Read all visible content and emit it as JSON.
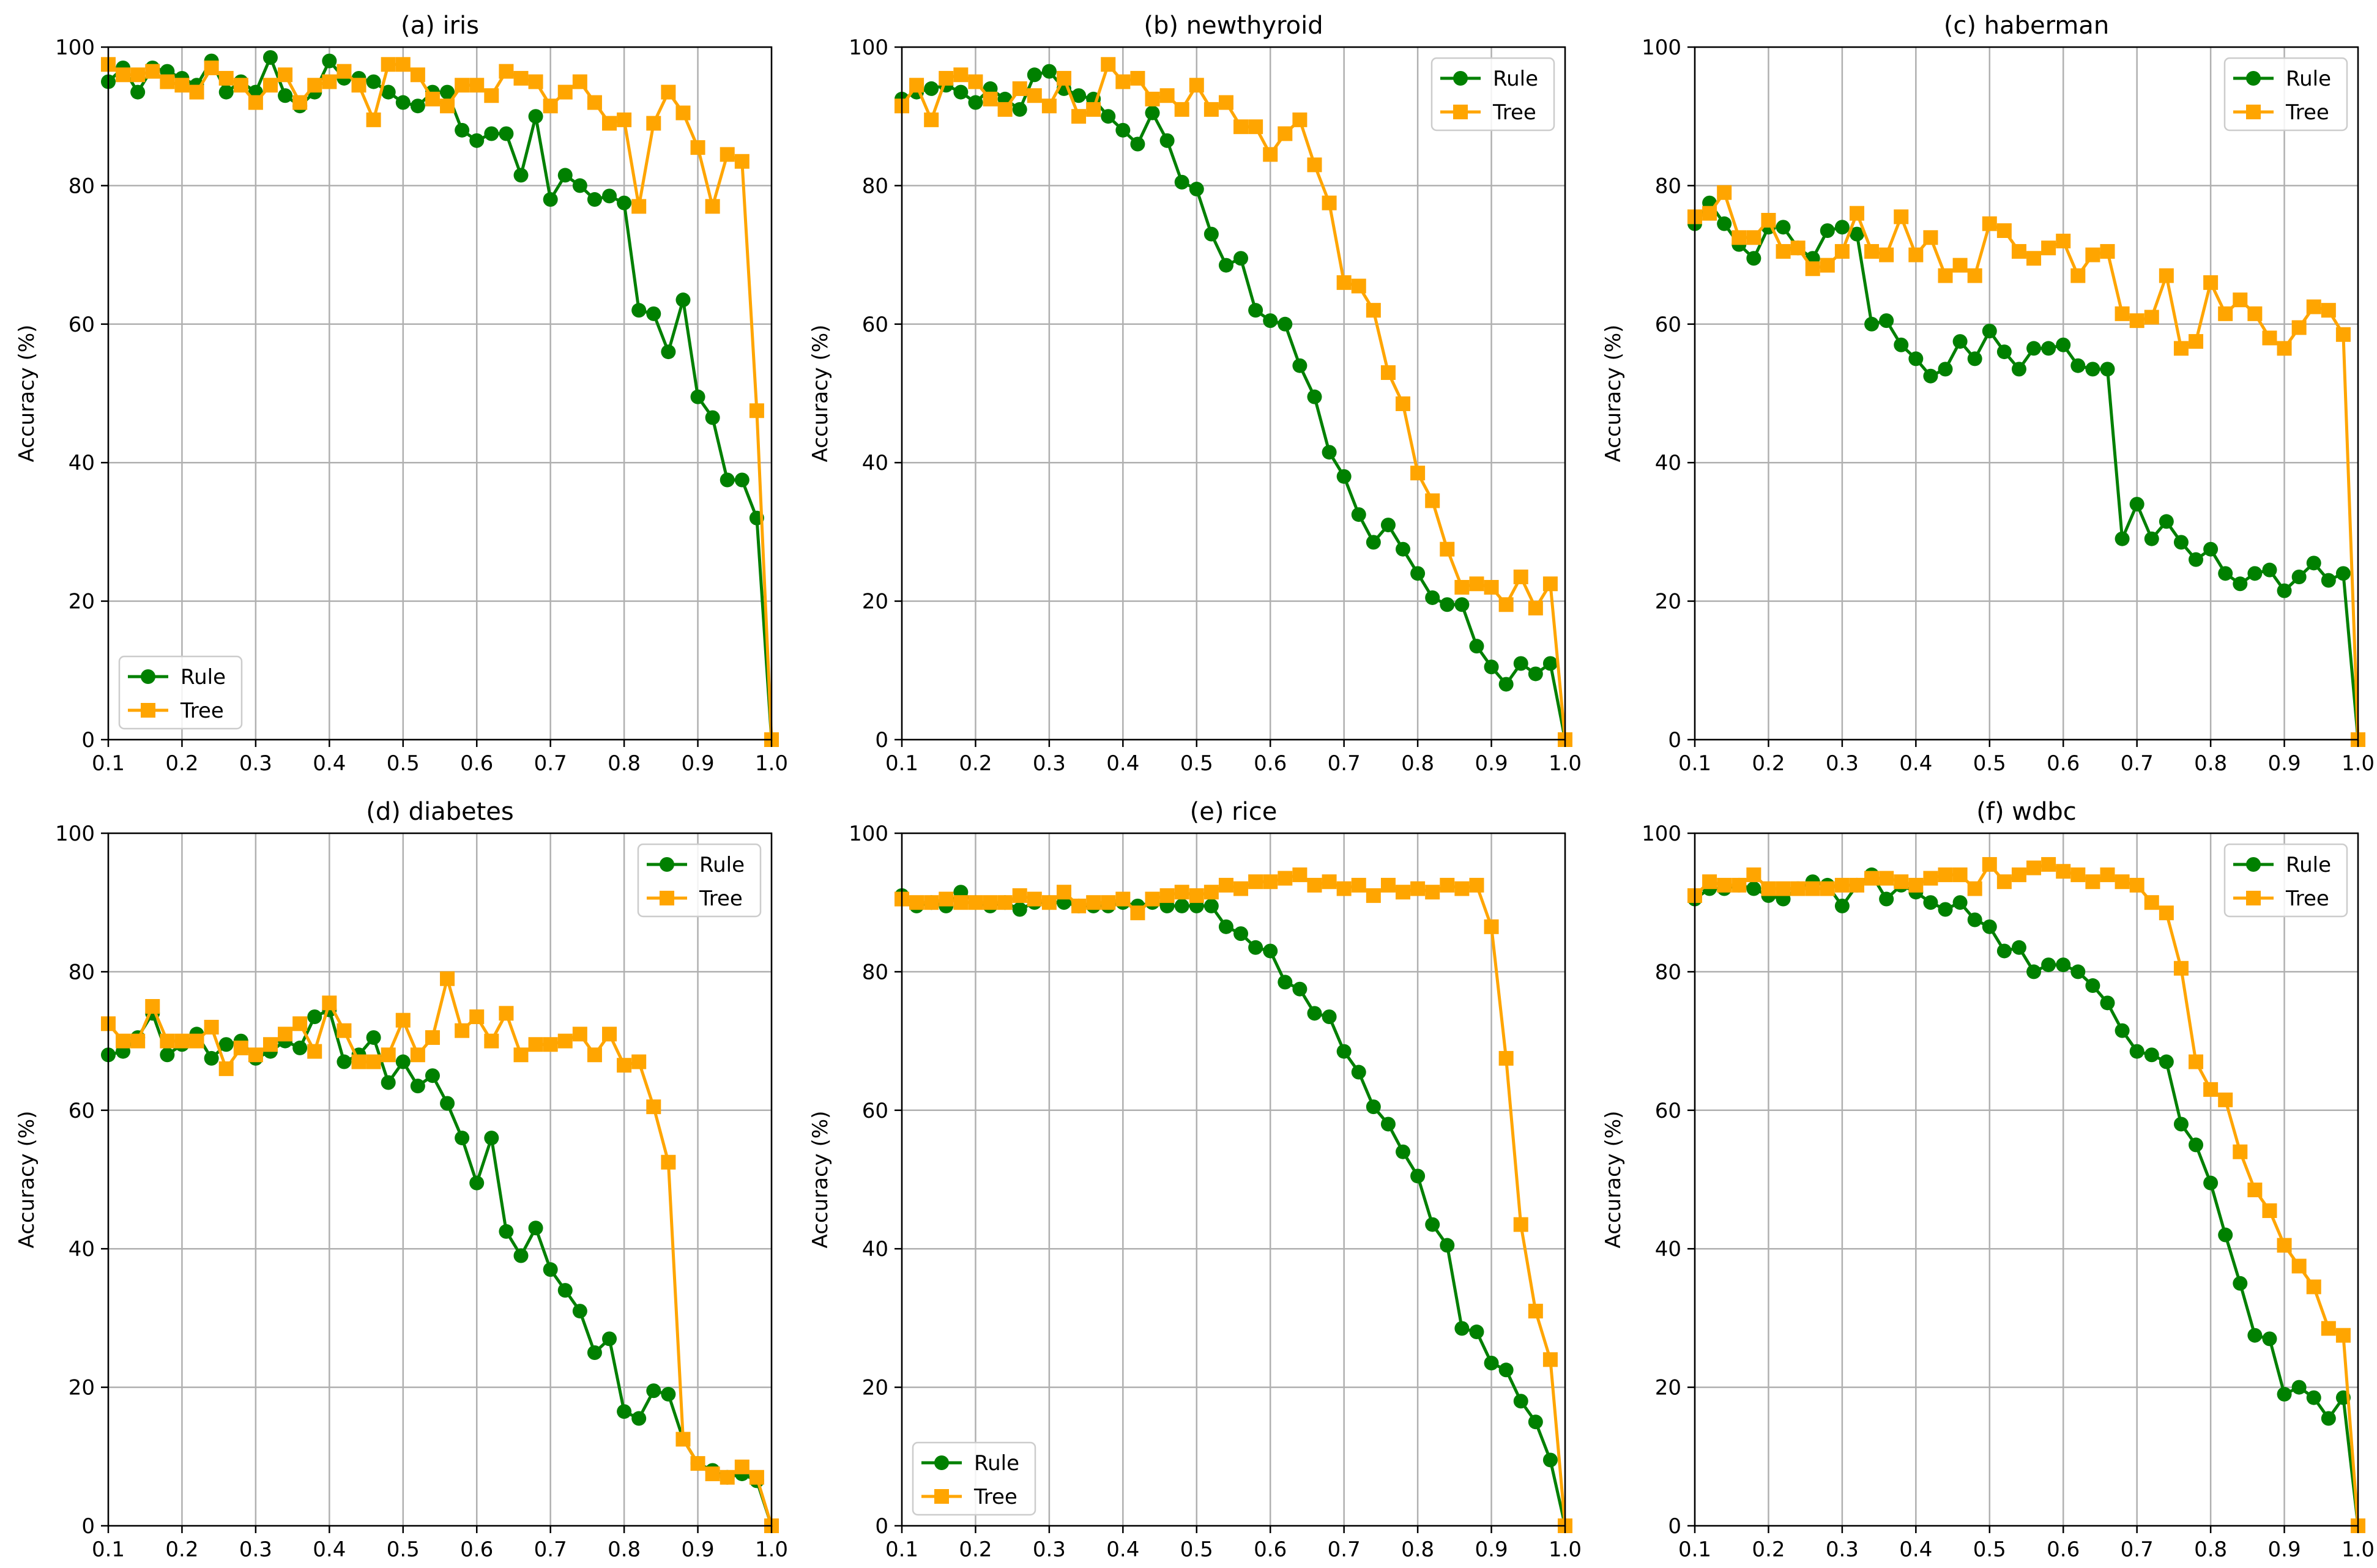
{
  "figure": {
    "background": "#ffffff",
    "colors": {
      "Rule": "#008000",
      "Tree": "#FFA500",
      "grid": "#b0b0b0"
    }
  },
  "chart_data": [
    {
      "type": "line",
      "title": "(a) iris",
      "xlabel": "",
      "ylabel": "Accuracy (%)",
      "xlim": [
        0.1,
        1.0
      ],
      "ylim": [
        0,
        100
      ],
      "xticks": [
        "0.1",
        "0.2",
        "0.3",
        "0.4",
        "0.5",
        "0.6",
        "0.7",
        "0.8",
        "0.9",
        "1.0"
      ],
      "yticks": [
        "0",
        "20",
        "40",
        "60",
        "80",
        "100"
      ],
      "grid": true,
      "legend": "lower left",
      "x": [
        0.1,
        0.12,
        0.14,
        0.16,
        0.18,
        0.2,
        0.22,
        0.24,
        0.26,
        0.28,
        0.3,
        0.32,
        0.34,
        0.36,
        0.38,
        0.4,
        0.42,
        0.44,
        0.46,
        0.48,
        0.5,
        0.52,
        0.54,
        0.56,
        0.58,
        0.6,
        0.62,
        0.64,
        0.66,
        0.68,
        0.7,
        0.72,
        0.74,
        0.76,
        0.78,
        0.8,
        0.82,
        0.84,
        0.86,
        0.88,
        0.9,
        0.92,
        0.94,
        0.96,
        0.98,
        1.0
      ],
      "series": [
        {
          "name": "Rule",
          "marker": "circle",
          "color": "#008000",
          "values": [
            95,
            97,
            93.5,
            97,
            96.5,
            95.5,
            94.5,
            98,
            93.5,
            95,
            93.5,
            98.5,
            93,
            91.5,
            93.5,
            98,
            95.5,
            95.5,
            95,
            93.5,
            92,
            91.5,
            93.5,
            93.5,
            88,
            86.5,
            87.5,
            87.5,
            81.5,
            90,
            78,
            81.5,
            80,
            78,
            78.5,
            77.5,
            62,
            61.5,
            56,
            63.5,
            49.5,
            46.5,
            37.5,
            37.5,
            32,
            0
          ]
        },
        {
          "name": "Tree",
          "marker": "square",
          "color": "#FFA500",
          "values": [
            97.5,
            96,
            96,
            96.5,
            95,
            94.5,
            93.5,
            97,
            95.5,
            94.5,
            92,
            94.5,
            96,
            92,
            94.5,
            95,
            96.5,
            94.5,
            89.5,
            97.5,
            97.5,
            96,
            92.5,
            91.5,
            94.5,
            94.5,
            93,
            96.5,
            95.5,
            95,
            91.5,
            93.5,
            95,
            92,
            89,
            89.5,
            77,
            89,
            93.5,
            90.5,
            85.5,
            77,
            84.5,
            83.5,
            47.5,
            0
          ]
        }
      ]
    },
    {
      "type": "line",
      "title": "(b) newthyroid",
      "xlabel": "",
      "ylabel": "Accuracy (%)",
      "xlim": [
        0.1,
        1.0
      ],
      "ylim": [
        0,
        100
      ],
      "xticks": [
        "0.1",
        "0.2",
        "0.3",
        "0.4",
        "0.5",
        "0.6",
        "0.7",
        "0.8",
        "0.9",
        "1.0"
      ],
      "yticks": [
        "0",
        "20",
        "40",
        "60",
        "80",
        "100"
      ],
      "grid": true,
      "legend": "upper right",
      "x": [
        0.1,
        0.12,
        0.14,
        0.16,
        0.18,
        0.2,
        0.22,
        0.24,
        0.26,
        0.28,
        0.3,
        0.32,
        0.34,
        0.36,
        0.38,
        0.4,
        0.42,
        0.44,
        0.46,
        0.48,
        0.5,
        0.52,
        0.54,
        0.56,
        0.58,
        0.6,
        0.62,
        0.64,
        0.66,
        0.68,
        0.7,
        0.72,
        0.74,
        0.76,
        0.78,
        0.8,
        0.82,
        0.84,
        0.86,
        0.88,
        0.9,
        0.92,
        0.94,
        0.96,
        0.98,
        1.0
      ],
      "series": [
        {
          "name": "Rule",
          "marker": "circle",
          "color": "#008000",
          "values": [
            92.5,
            93.5,
            94,
            94.5,
            93.5,
            92,
            94,
            92.5,
            91,
            96,
            96.5,
            94,
            93,
            92.5,
            90,
            88,
            86,
            90.5,
            86.5,
            80.5,
            79.5,
            73,
            68.5,
            69.5,
            62,
            60.5,
            60,
            54,
            49.5,
            41.5,
            38,
            32.5,
            28.5,
            31,
            27.5,
            24,
            20.5,
            19.5,
            19.5,
            13.5,
            10.5,
            8,
            11,
            9.5,
            11,
            0
          ]
        },
        {
          "name": "Tree",
          "marker": "square",
          "color": "#FFA500",
          "values": [
            91.5,
            94.5,
            89.5,
            95.5,
            96,
            95,
            92.5,
            91,
            94,
            93,
            91.5,
            95.5,
            90,
            91,
            97.5,
            95,
            95.5,
            92.5,
            93,
            91,
            94.5,
            91,
            92,
            88.5,
            88.5,
            84.5,
            87.5,
            89.5,
            83,
            77.5,
            66,
            65.5,
            62,
            53,
            48.5,
            38.5,
            34.5,
            27.5,
            22,
            22.5,
            22,
            19.5,
            23.5,
            19,
            22.5,
            0
          ]
        }
      ]
    },
    {
      "type": "line",
      "title": "(c) haberman",
      "xlabel": "",
      "ylabel": "Accuracy (%)",
      "xlim": [
        0.1,
        1.0
      ],
      "ylim": [
        0,
        100
      ],
      "xticks": [
        "0.1",
        "0.2",
        "0.3",
        "0.4",
        "0.5",
        "0.6",
        "0.7",
        "0.8",
        "0.9",
        "1.0"
      ],
      "yticks": [
        "0",
        "20",
        "40",
        "60",
        "80",
        "100"
      ],
      "grid": true,
      "legend": "upper right",
      "x": [
        0.1,
        0.12,
        0.14,
        0.16,
        0.18,
        0.2,
        0.22,
        0.24,
        0.26,
        0.28,
        0.3,
        0.32,
        0.34,
        0.36,
        0.38,
        0.4,
        0.42,
        0.44,
        0.46,
        0.48,
        0.5,
        0.52,
        0.54,
        0.56,
        0.58,
        0.6,
        0.62,
        0.64,
        0.66,
        0.68,
        0.7,
        0.72,
        0.74,
        0.76,
        0.78,
        0.8,
        0.82,
        0.84,
        0.86,
        0.88,
        0.9,
        0.92,
        0.94,
        0.96,
        0.98,
        1.0
      ],
      "series": [
        {
          "name": "Rule",
          "marker": "circle",
          "color": "#008000",
          "values": [
            74.5,
            77.5,
            74.5,
            71.5,
            69.5,
            74,
            74,
            71,
            69.5,
            73.5,
            74,
            73,
            60,
            60.5,
            57,
            55,
            52.5,
            53.5,
            57.5,
            55,
            59,
            56,
            53.5,
            56.5,
            56.5,
            57,
            54,
            53.5,
            53.5,
            29,
            34,
            29,
            31.5,
            28.5,
            26,
            27.5,
            24,
            22.5,
            24,
            24.5,
            21.5,
            23.5,
            25.5,
            23,
            24,
            0
          ]
        },
        {
          "name": "Tree",
          "marker": "square",
          "color": "#FFA500",
          "values": [
            75.5,
            76,
            79,
            72.5,
            72.5,
            75,
            70.5,
            71,
            68,
            68.5,
            70.5,
            76,
            70.5,
            70,
            75.5,
            70,
            72.5,
            67,
            68.5,
            67,
            74.5,
            73.5,
            70.5,
            69.5,
            71,
            72,
            67,
            70,
            70.5,
            61.5,
            60.5,
            61,
            67,
            56.5,
            57.5,
            66,
            61.5,
            63.5,
            61.5,
            58,
            56.5,
            59.5,
            62.5,
            62,
            58.5,
            0
          ]
        }
      ]
    },
    {
      "type": "line",
      "title": "(d) diabetes",
      "xlabel": "",
      "ylabel": "Accuracy (%)",
      "xlim": [
        0.1,
        1.0
      ],
      "ylim": [
        0,
        100
      ],
      "xticks": [
        "0.1",
        "0.2",
        "0.3",
        "0.4",
        "0.5",
        "0.6",
        "0.7",
        "0.8",
        "0.9",
        "1.0"
      ],
      "yticks": [
        "0",
        "20",
        "40",
        "60",
        "80",
        "100"
      ],
      "grid": true,
      "legend": "upper right",
      "x": [
        0.1,
        0.12,
        0.14,
        0.16,
        0.18,
        0.2,
        0.22,
        0.24,
        0.26,
        0.28,
        0.3,
        0.32,
        0.34,
        0.36,
        0.38,
        0.4,
        0.42,
        0.44,
        0.46,
        0.48,
        0.5,
        0.52,
        0.54,
        0.56,
        0.58,
        0.6,
        0.62,
        0.64,
        0.66,
        0.68,
        0.7,
        0.72,
        0.74,
        0.76,
        0.78,
        0.8,
        0.82,
        0.84,
        0.86,
        0.88,
        0.9,
        0.92,
        0.94,
        0.96,
        0.98,
        1.0
      ],
      "series": [
        {
          "name": "Rule",
          "marker": "circle",
          "color": "#008000",
          "values": [
            68,
            68.5,
            70.5,
            74,
            68,
            69.5,
            71,
            67.5,
            69.5,
            70,
            67.5,
            68.5,
            70,
            69,
            73.5,
            74.5,
            67,
            68,
            70.5,
            64,
            67,
            63.5,
            65,
            61,
            56,
            49.5,
            56,
            42.5,
            39,
            43,
            37,
            34,
            31,
            25,
            27,
            16.5,
            15.5,
            19.5,
            19,
            12.5,
            9,
            8,
            7,
            7.5,
            6.5,
            0
          ]
        },
        {
          "name": "Tree",
          "marker": "square",
          "color": "#FFA500",
          "values": [
            72.5,
            70,
            70,
            75,
            70,
            70,
            70,
            72,
            66,
            69,
            68,
            69.5,
            71,
            72.5,
            68.5,
            75.5,
            71.5,
            67,
            67,
            68,
            73,
            68,
            70.5,
            79,
            71.5,
            73.5,
            70,
            74,
            68,
            69.5,
            69.5,
            70,
            71,
            68,
            71,
            66.5,
            67,
            60.5,
            52.5,
            12.5,
            9,
            7.5,
            7,
            8.5,
            7,
            0
          ]
        }
      ]
    },
    {
      "type": "line",
      "title": "(e) rice",
      "xlabel": "",
      "ylabel": "Accuracy (%)",
      "xlim": [
        0.1,
        1.0
      ],
      "ylim": [
        0,
        100
      ],
      "xticks": [
        "0.1",
        "0.2",
        "0.3",
        "0.4",
        "0.5",
        "0.6",
        "0.7",
        "0.8",
        "0.9",
        "1.0"
      ],
      "yticks": [
        "0",
        "20",
        "40",
        "60",
        "80",
        "100"
      ],
      "grid": true,
      "legend": "lower left",
      "x": [
        0.1,
        0.12,
        0.14,
        0.16,
        0.18,
        0.2,
        0.22,
        0.24,
        0.26,
        0.28,
        0.3,
        0.32,
        0.34,
        0.36,
        0.38,
        0.4,
        0.42,
        0.44,
        0.46,
        0.48,
        0.5,
        0.52,
        0.54,
        0.56,
        0.58,
        0.6,
        0.62,
        0.64,
        0.66,
        0.68,
        0.7,
        0.72,
        0.74,
        0.76,
        0.78,
        0.8,
        0.82,
        0.84,
        0.86,
        0.88,
        0.9,
        0.92,
        0.94,
        0.96,
        0.98,
        1.0
      ],
      "series": [
        {
          "name": "Rule",
          "marker": "circle",
          "color": "#008000",
          "values": [
            91,
            89.5,
            90,
            89.5,
            91.5,
            90,
            89.5,
            90,
            89,
            90,
            90,
            90,
            89.5,
            89.5,
            89.5,
            90,
            89.5,
            90,
            89.5,
            89.5,
            89.5,
            89.5,
            86.5,
            85.5,
            83.5,
            83,
            78.5,
            77.5,
            74,
            73.5,
            68.5,
            65.5,
            60.5,
            58,
            54,
            50.5,
            43.5,
            40.5,
            28.5,
            28,
            23.5,
            22.5,
            18,
            15,
            9.5,
            0
          ]
        },
        {
          "name": "Tree",
          "marker": "square",
          "color": "#FFA500",
          "values": [
            90.5,
            90,
            90,
            90.5,
            90,
            90,
            90,
            90,
            91,
            90.5,
            90,
            91.5,
            89.5,
            90,
            90,
            90.5,
            88.5,
            90.5,
            91,
            91.5,
            91,
            91.5,
            92.5,
            92,
            93,
            93,
            93.5,
            94,
            92.5,
            93,
            92,
            92.5,
            91,
            92.5,
            91.5,
            92,
            91.5,
            92.5,
            92,
            92.5,
            86.5,
            67.5,
            43.5,
            31,
            24,
            0
          ]
        }
      ]
    },
    {
      "type": "line",
      "title": "(f) wdbc",
      "xlabel": "",
      "ylabel": "Accuracy (%)",
      "xlim": [
        0.1,
        1.0
      ],
      "ylim": [
        0,
        100
      ],
      "xticks": [
        "0.1",
        "0.2",
        "0.3",
        "0.4",
        "0.5",
        "0.6",
        "0.7",
        "0.8",
        "0.9",
        "1.0"
      ],
      "yticks": [
        "0",
        "20",
        "40",
        "60",
        "80",
        "100"
      ],
      "grid": true,
      "legend": "upper right",
      "x": [
        0.1,
        0.12,
        0.14,
        0.16,
        0.18,
        0.2,
        0.22,
        0.24,
        0.26,
        0.28,
        0.3,
        0.32,
        0.34,
        0.36,
        0.38,
        0.4,
        0.42,
        0.44,
        0.46,
        0.48,
        0.5,
        0.52,
        0.54,
        0.56,
        0.58,
        0.6,
        0.62,
        0.64,
        0.66,
        0.68,
        0.7,
        0.72,
        0.74,
        0.76,
        0.78,
        0.8,
        0.82,
        0.84,
        0.86,
        0.88,
        0.9,
        0.92,
        0.94,
        0.96,
        0.98,
        1.0
      ],
      "series": [
        {
          "name": "Rule",
          "marker": "circle",
          "color": "#008000",
          "values": [
            90.5,
            92,
            92,
            92.5,
            92,
            91,
            90.5,
            92,
            93,
            92.5,
            89.5,
            92.5,
            94,
            90.5,
            92.5,
            91.5,
            90,
            89,
            90,
            87.5,
            86.5,
            83,
            83.5,
            80,
            81,
            81,
            80,
            78,
            75.5,
            71.5,
            68.5,
            68,
            67,
            58,
            55,
            49.5,
            42,
            35,
            27.5,
            27,
            19,
            20,
            18.5,
            15.5,
            18.5,
            0
          ]
        },
        {
          "name": "Tree",
          "marker": "square",
          "color": "#FFA500",
          "values": [
            91,
            93,
            92.5,
            92.5,
            94,
            92,
            92,
            92,
            92,
            92,
            92.5,
            92.5,
            93.5,
            93.5,
            93,
            92.5,
            93.5,
            94,
            94,
            92,
            95.5,
            93,
            94,
            95,
            95.5,
            94.5,
            94,
            93,
            94,
            93,
            92.5,
            90,
            88.5,
            80.5,
            67,
            63,
            61.5,
            54,
            48.5,
            45.5,
            40.5,
            37.5,
            34.5,
            28.5,
            27.5,
            0
          ]
        }
      ]
    }
  ]
}
